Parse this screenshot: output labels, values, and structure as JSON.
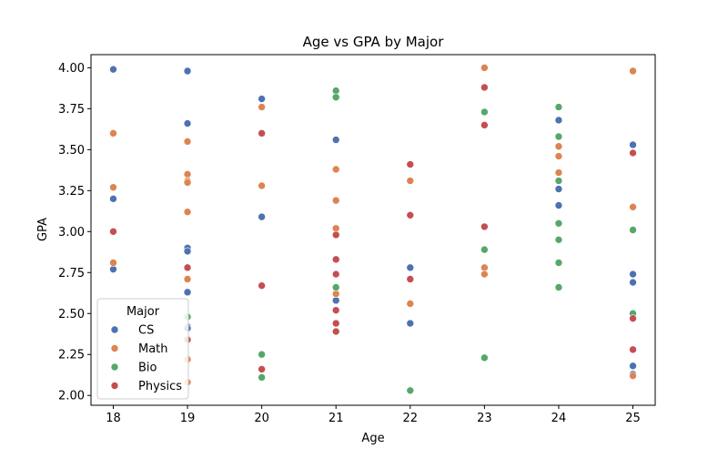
{
  "chart_data": {
    "type": "scatter",
    "title": "Age vs GPA by Major",
    "xlabel": "Age",
    "ylabel": "GPA",
    "xlim": [
      17.7,
      25.3
    ],
    "ylim": [
      1.94,
      4.08
    ],
    "xticks": [
      18,
      19,
      20,
      21,
      22,
      23,
      24,
      25
    ],
    "yticks": [
      2.0,
      2.25,
      2.5,
      2.75,
      3.0,
      3.25,
      3.5,
      3.75,
      4.0
    ],
    "ytick_labels": [
      "2.00",
      "2.25",
      "2.50",
      "2.75",
      "3.00",
      "3.25",
      "3.50",
      "3.75",
      "4.00"
    ],
    "grid": false,
    "legend": {
      "title": "Major",
      "placement": "lower-left"
    },
    "series": [
      {
        "name": "CS",
        "color": "#4c72b0",
        "points": [
          [
            18,
            3.99
          ],
          [
            18,
            3.2
          ],
          [
            18,
            2.77
          ],
          [
            19,
            3.98
          ],
          [
            19,
            3.66
          ],
          [
            19,
            2.9
          ],
          [
            19,
            2.88
          ],
          [
            19,
            2.63
          ],
          [
            19,
            2.42
          ],
          [
            19,
            2.41
          ],
          [
            20,
            3.81
          ],
          [
            20,
            3.09
          ],
          [
            21,
            3.56
          ],
          [
            21,
            2.58
          ],
          [
            22,
            2.78
          ],
          [
            22,
            2.44
          ],
          [
            24,
            3.68
          ],
          [
            24,
            3.26
          ],
          [
            24,
            3.16
          ],
          [
            25,
            3.53
          ],
          [
            25,
            2.74
          ],
          [
            25,
            2.69
          ],
          [
            25,
            2.18
          ],
          [
            25,
            2.13
          ]
        ]
      },
      {
        "name": "Math",
        "color": "#dd8452",
        "points": [
          [
            18,
            3.6
          ],
          [
            18,
            3.27
          ],
          [
            18,
            2.81
          ],
          [
            19,
            3.55
          ],
          [
            19,
            3.35
          ],
          [
            19,
            3.31
          ],
          [
            19,
            3.3
          ],
          [
            19,
            3.12
          ],
          [
            19,
            2.71
          ],
          [
            19,
            2.22
          ],
          [
            19,
            2.08
          ],
          [
            20,
            3.76
          ],
          [
            20,
            3.28
          ],
          [
            21,
            3.38
          ],
          [
            21,
            3.19
          ],
          [
            21,
            3.02
          ],
          [
            21,
            2.62
          ],
          [
            22,
            3.31
          ],
          [
            22,
            2.56
          ],
          [
            23,
            4.0
          ],
          [
            23,
            2.78
          ],
          [
            23,
            2.74
          ],
          [
            24,
            3.52
          ],
          [
            24,
            3.46
          ],
          [
            24,
            3.36
          ],
          [
            25,
            3.98
          ],
          [
            25,
            3.15
          ],
          [
            25,
            2.12
          ]
        ]
      },
      {
        "name": "Bio",
        "color": "#55a868",
        "points": [
          [
            19,
            2.48
          ],
          [
            20,
            2.25
          ],
          [
            20,
            2.11
          ],
          [
            21,
            3.86
          ],
          [
            21,
            3.82
          ],
          [
            21,
            2.66
          ],
          [
            22,
            2.03
          ],
          [
            23,
            3.73
          ],
          [
            23,
            2.89
          ],
          [
            23,
            2.23
          ],
          [
            24,
            3.76
          ],
          [
            24,
            3.58
          ],
          [
            24,
            3.31
          ],
          [
            24,
            3.05
          ],
          [
            24,
            2.95
          ],
          [
            24,
            2.81
          ],
          [
            24,
            2.66
          ],
          [
            25,
            3.01
          ],
          [
            25,
            2.5
          ]
        ]
      },
      {
        "name": "Physics",
        "color": "#c44e52",
        "points": [
          [
            18,
            3.0
          ],
          [
            19,
            2.78
          ],
          [
            19,
            2.34
          ],
          [
            20,
            3.6
          ],
          [
            20,
            2.67
          ],
          [
            20,
            2.16
          ],
          [
            21,
            2.98
          ],
          [
            21,
            2.83
          ],
          [
            21,
            2.74
          ],
          [
            21,
            2.52
          ],
          [
            21,
            2.44
          ],
          [
            21,
            2.39
          ],
          [
            22,
            3.41
          ],
          [
            22,
            3.1
          ],
          [
            22,
            2.71
          ],
          [
            23,
            3.88
          ],
          [
            23,
            3.65
          ],
          [
            23,
            3.03
          ],
          [
            25,
            3.48
          ],
          [
            25,
            2.47
          ],
          [
            25,
            2.28
          ]
        ]
      }
    ]
  }
}
